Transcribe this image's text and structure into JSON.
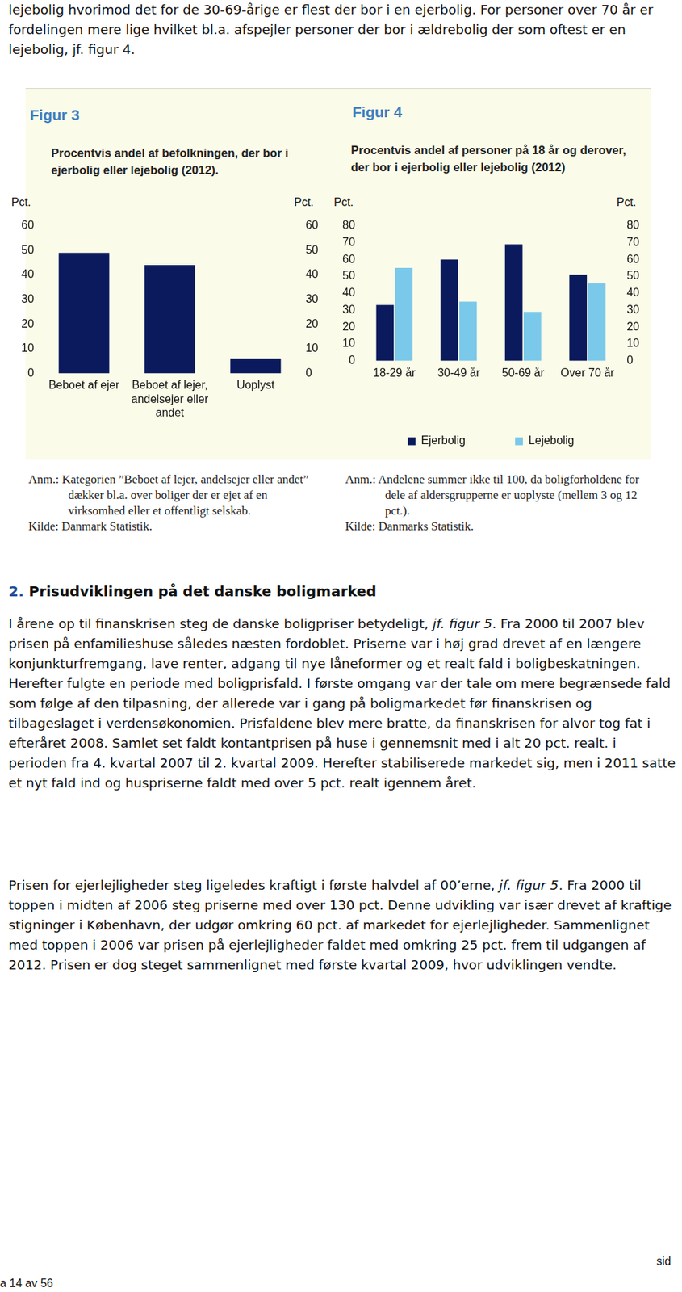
{
  "document": {
    "intro": "lejebolig hvorimod det for de 30-69-årige er flest der bor i en ejerbolig. For personer over 70 år er fordelingen mere lige hvilket bl.a. afspejler personer der bor i ældrebolig der som oftest er en lejebolig, jf. figur 4.",
    "heading_number": "2.",
    "heading": "Prisudviklingen på det danske boligmarked",
    "paragraphs": [
      [
        {
          "text": "I årene op til finanskrisen steg de danske boligpriser betydeligt, ",
          "italic": false
        },
        {
          "text": "jf. figur 5",
          "italic": true
        },
        {
          "text": ". Fra 2000 til 2007 blev prisen på enfamilieshuse således næsten fordoblet. Priserne var i høj grad drevet af en længere konjunkturfremgang, lave renter, adgang til nye låneformer og et realt fald i boligbeskatningen. Herefter fulgte en periode med boligprisfald. I første omgang var der tale om mere begrænsede fald som følge af den tilpasning, der allerede var i gang på boligmarkedet før finanskrisen og tilbageslaget i verdensøkonomien. Prisfaldene blev mere bratte, da finanskrisen for alvor tog fat i efteråret 2008. Samlet set faldt kontantprisen på huse i gennemsnit med i alt 20 pct. realt. i perioden fra 4. kvartal 2007 til 2. kvartal 2009. Herefter stabiliserede markedet sig, men i 2011 satte et nyt fald ind og huspriserne faldt med over 5 pct. realt igennem året.",
          "italic": false
        }
      ],
      [
        {
          "text": "Prisen for ejerlejligheder steg ligeledes kraftigt i første halvdel af 00’erne, ",
          "italic": false
        },
        {
          "text": "jf. figur 5",
          "italic": true
        },
        {
          "text": ". Fra 2000 til toppen i midten af 2006 steg priserne med over 130 pct. Denne udvikling var især drevet af kraftige stigninger i København, der udgør omkring 60 pct. af markedet for ejerlejligheder. Sammenlignet med toppen i 2006 var prisen på ejerlejligheder faldet med omkring 25 pct. frem til udgangen af 2012. Prisen er dog steget sammenlignet med første kvartal 2009, hvor udviklingen vendte.",
          "italic": false
        }
      ]
    ],
    "footer_left": "a 14 av 56",
    "footer_right": "sid"
  },
  "chart_data": [
    {
      "type": "bar",
      "figure_label": "Figur 3",
      "title": "Procentvis andel af befolkningen, der bor i ejerbolig eller lejebolig (2012).",
      "categories": [
        "Beboet af ejer",
        "Beboet af lejer, andelsejer eller andet",
        "Uoplyst"
      ],
      "values": [
        49,
        44,
        6
      ],
      "color": "#0b1a5c",
      "ylim": [
        0,
        60
      ],
      "yticks": [
        0,
        10,
        20,
        30,
        40,
        50,
        60
      ],
      "y2lim": [
        0,
        60
      ],
      "y2ticks": [
        0,
        10,
        20,
        30,
        40,
        50,
        60
      ],
      "y_label": "Pct.",
      "y2_label": "Pct.",
      "grid": false,
      "note": "Anm.: Kategorien ”Beboet af lejer, andelsejer eller andet” dækker bl.a. over boliger der er ejet af en virksomhed eller et offentligt selskab.",
      "source": "Kilde: Danmark Statistik."
    },
    {
      "type": "bar",
      "figure_label": "Figur 4",
      "title": "Procentvis andel af personer på 18 år og derover, der bor i ejerbolig eller lejebolig (2012)",
      "categories": [
        "18-29 år",
        "30-49 år",
        "50-69 år",
        "Over 70 år"
      ],
      "series": [
        {
          "name": "Ejerbolig",
          "color": "#0b1a5c",
          "values": [
            33,
            60,
            69,
            51
          ]
        },
        {
          "name": "Lejebolig",
          "color": "#7ac9ea",
          "values": [
            55,
            35,
            29,
            46
          ]
        }
      ],
      "ylim": [
        0,
        80
      ],
      "yticks": [
        0,
        10,
        20,
        30,
        40,
        50,
        60,
        70,
        80
      ],
      "y2lim": [
        0,
        80
      ],
      "y2ticks": [
        0,
        10,
        20,
        30,
        40,
        50,
        60,
        70,
        80
      ],
      "y_label": "Pct.",
      "y2_label": "Pct.",
      "grid": false,
      "legend": "bottom",
      "note": "Anm.: Andelene summer ikke til 100, da boligforholdene for dele af aldersgrupperne er uoplyste (mellem 3 og 12 pct.).",
      "source": "Kilde: Danmarks Statistik."
    }
  ]
}
